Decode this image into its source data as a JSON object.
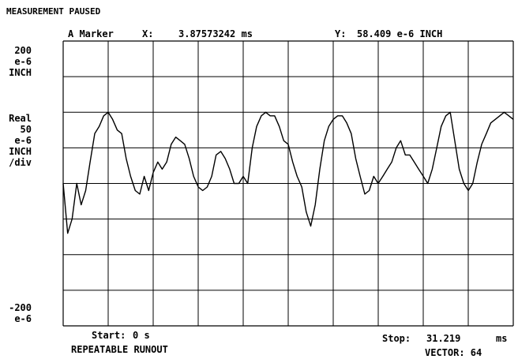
{
  "status": "MEASUREMENT PAUSED",
  "marker": {
    "name": "A Marker",
    "x_label": "X:",
    "x_value": "3.87573242 ms",
    "y_label": "Y:",
    "y_value": "58.409 e-6 INCH"
  },
  "y_axis": {
    "top": [
      "200",
      "e-6",
      "INCH"
    ],
    "scale": [
      "Real",
      "50",
      "e-6",
      "INCH",
      "/div"
    ],
    "bottom": [
      "-200",
      "e-6"
    ]
  },
  "footer": {
    "start_label": "Start:",
    "start_value": "0 s",
    "stop_label": "Stop:",
    "stop_value": "31.219",
    "stop_unit": "ms",
    "trace_name": "REPEATABLE RUNOUT",
    "vector": "VECTOR: 64"
  },
  "chart_data": {
    "type": "line",
    "x_range_ms": [
      0,
      31.219
    ],
    "ylim": [
      -200,
      200
    ],
    "y_unit": "e-6 INCH",
    "grid": true,
    "marker": {
      "x": 3.87573242,
      "y": 58.409
    },
    "series": [
      {
        "x": [
          0,
          0.31,
          0.62,
          0.94,
          1.25,
          1.56,
          1.87,
          2.19,
          2.5,
          2.81,
          3.12,
          3.43,
          3.75,
          4.06,
          4.37,
          4.68,
          5,
          5.31,
          5.62,
          5.93,
          6.24,
          6.56,
          6.87,
          7.18,
          7.49,
          7.81,
          8.12,
          8.43,
          8.74,
          9.05,
          9.37,
          9.68,
          9.99,
          10.3,
          10.61,
          10.93,
          11.24,
          11.55,
          11.86,
          12.18,
          12.49,
          12.8,
          13.11,
          13.42,
          13.74,
          14.05,
          14.36,
          14.67,
          14.99,
          15.3,
          15.61,
          15.92,
          16.23,
          16.55,
          16.86,
          17.17,
          17.48,
          17.8,
          18.11,
          18.42,
          18.73,
          19.04,
          19.36,
          19.67,
          19.98,
          20.29,
          20.6,
          20.92,
          21.23,
          21.54,
          21.85,
          22.17,
          22.48,
          22.79,
          23.1,
          23.41,
          23.73,
          24.04,
          24.35,
          24.66,
          24.98,
          25.29,
          25.6,
          25.91,
          26.22,
          26.54,
          26.85,
          27.16,
          27.47,
          27.79,
          28.1,
          28.41,
          28.72,
          29.03,
          29.35,
          29.66,
          29.97,
          30.28,
          30.59,
          30.91,
          31.22
        ],
        "y": [
          0,
          -70,
          -50,
          0,
          -30,
          -10,
          30,
          70,
          80,
          95,
          100,
          90,
          75,
          70,
          35,
          10,
          -10,
          -15,
          10,
          -10,
          15,
          30,
          20,
          30,
          55,
          65,
          60,
          55,
          35,
          10,
          -5,
          -10,
          -5,
          10,
          40,
          45,
          35,
          20,
          0,
          0,
          10,
          0,
          50,
          80,
          95,
          100,
          95,
          95,
          80,
          60,
          55,
          30,
          10,
          -5,
          -40,
          -60,
          -30,
          20,
          60,
          80,
          90,
          95,
          95,
          85,
          70,
          35,
          10,
          -15,
          -10,
          10,
          0,
          10,
          20,
          30,
          50,
          60,
          40,
          40,
          30,
          20,
          10,
          0,
          20,
          50,
          80,
          95,
          100,
          60,
          20,
          0,
          -10,
          0,
          30,
          55,
          70,
          85,
          90,
          95,
          100,
          95,
          90
        ]
      }
    ]
  }
}
